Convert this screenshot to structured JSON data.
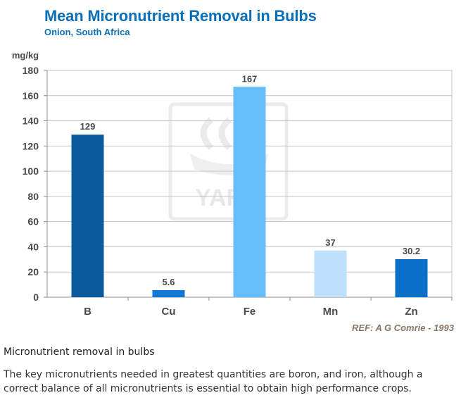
{
  "chart_data": {
    "type": "bar",
    "title": "Mean Micronutrient Removal in Bulbs",
    "subtitle": "Onion, South Africa",
    "ylabel": "mg/kg",
    "xlabel": "",
    "ylim": [
      0,
      180
    ],
    "yticks": [
      0,
      20,
      40,
      60,
      80,
      100,
      120,
      140,
      160,
      180
    ],
    "categories": [
      "B",
      "Cu",
      "Fe",
      "Mn",
      "Zn"
    ],
    "values": [
      129,
      5.6,
      167,
      37,
      30.2
    ],
    "value_labels": [
      "129",
      "5.6",
      "167",
      "37",
      "30.2"
    ],
    "bar_colors": [
      "#0a5a9c",
      "#1278d6",
      "#66bdfa",
      "#bde0fb",
      "#0a6fc6"
    ],
    "grid": true,
    "reference": "REF: A G Comrie - 1993",
    "watermark": "YARA"
  },
  "text": {
    "caption": "Micronutrient removal in bulbs",
    "description": "The key micronutrients needed in greatest quantities are boron, and iron, although a correct balance of all micronutrients is essential to obtain high performance crops."
  },
  "colors": {
    "title": "#0b6fb7",
    "axis_text": "#4a4a4a",
    "grid": "#c9c3bc",
    "reference": "#8a7664",
    "watermark": "#d9d9d9"
  }
}
